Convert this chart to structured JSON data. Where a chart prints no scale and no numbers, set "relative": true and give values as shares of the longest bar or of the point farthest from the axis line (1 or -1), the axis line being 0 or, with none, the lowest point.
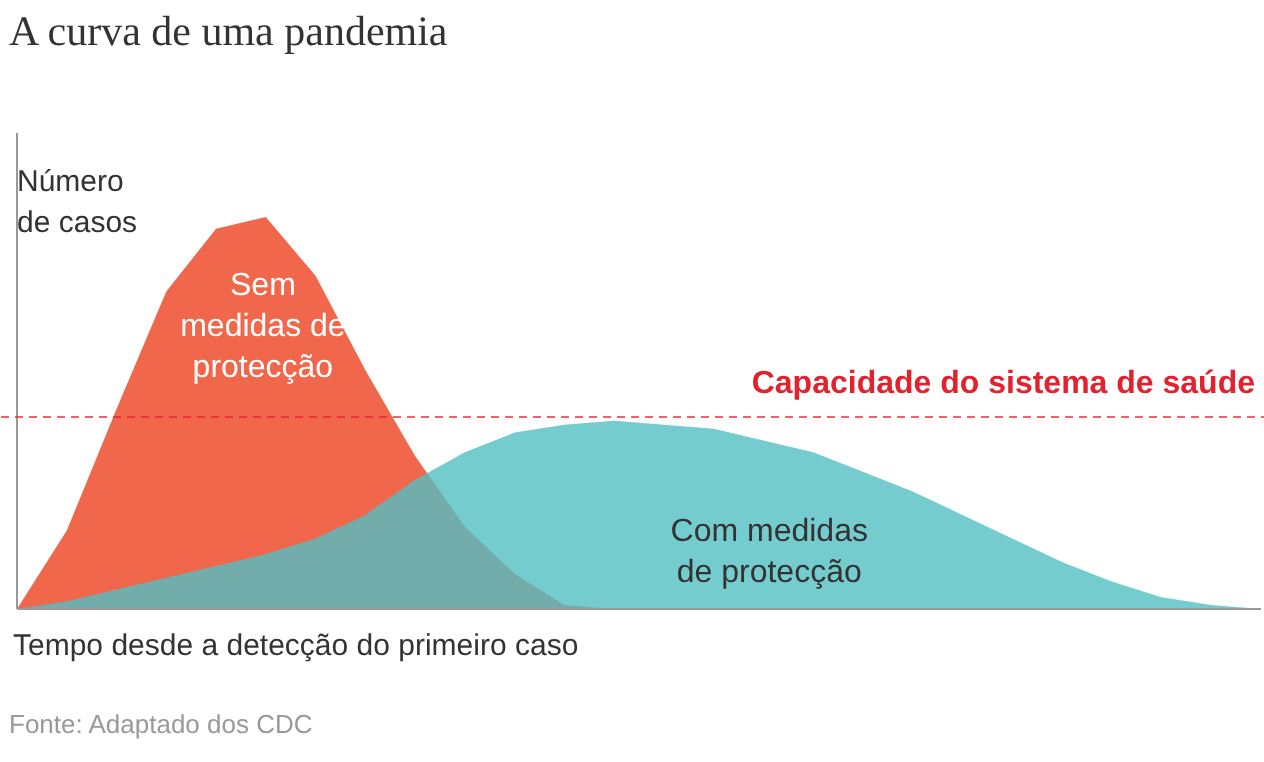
{
  "chart_data": {
    "type": "area",
    "title": "A curva de uma pandemia",
    "ylabel": "Número de casos",
    "xlabel": "Tempo desde a detecção do primeiro caso",
    "relative": true,
    "categories": [
      null,
      null,
      null,
      null,
      null,
      null,
      null,
      null,
      null,
      null,
      null,
      null,
      null,
      null,
      null,
      null,
      null,
      null,
      null,
      null,
      null,
      null,
      null,
      null,
      null,
      null
    ],
    "series": [
      {
        "name": "Com medidas de protecção",
        "color": "#52bfc3",
        "values": [
          0,
          0.02,
          0.05,
          0.08,
          0.11,
          0.14,
          0.18,
          0.24,
          0.33,
          0.4,
          0.45,
          0.47,
          0.48,
          0.47,
          0.46,
          0.43,
          0.4,
          0.35,
          0.3,
          0.24,
          0.18,
          0.12,
          0.07,
          0.03,
          0.01,
          0
        ]
      },
      {
        "name": "Sem medidas de protecção",
        "color": "#f0674b",
        "values": [
          0,
          0.2,
          0.51,
          0.81,
          0.97,
          1.0,
          0.85,
          0.61,
          0.39,
          0.21,
          0.09,
          0.01,
          0,
          null,
          null,
          null,
          null,
          null,
          null,
          null,
          null,
          null,
          null,
          null,
          null,
          null
        ]
      }
    ],
    "ref_lines": [
      {
        "axis": "y",
        "value": 0.49,
        "label": "Capacidade do sistema de saúde",
        "color": "#e3222d",
        "line_style": "dashed"
      }
    ],
    "annotations": [
      "Fonte: Adaptado dos CDC"
    ],
    "grid": false
  }
}
